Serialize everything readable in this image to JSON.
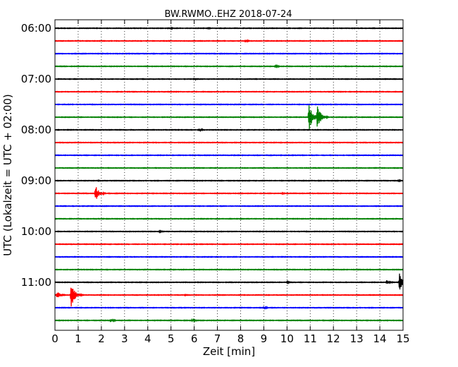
{
  "chart_data": {
    "type": "line",
    "title": "BW.RWMO..EHZ 2018-07-24",
    "xlabel": "Zeit  [min]",
    "ylabel": "UTC (Lokalzeit = UTC + 02:00)",
    "xlim": [
      0,
      15
    ],
    "x_ticks": [
      "0",
      "1",
      "2",
      "3",
      "4",
      "5",
      "6",
      "7",
      "8",
      "9",
      "10",
      "11",
      "12",
      "13",
      "14",
      "15"
    ],
    "grid": "vertical dotted",
    "trace_colors": [
      "#000000",
      "#ff0000",
      "#0000ff",
      "#008000"
    ],
    "hour_labels": [
      {
        "label": "06:00",
        "row": 0
      },
      {
        "label": "07:00",
        "row": 4
      },
      {
        "label": "08:00",
        "row": 8
      },
      {
        "label": "09:00",
        "row": 12
      },
      {
        "label": "10:00",
        "row": 16
      },
      {
        "label": "11:00",
        "row": 20
      }
    ],
    "rows": [
      {
        "start": "06:00",
        "events": [
          {
            "t": 5.0,
            "amp": 0.18
          },
          {
            "t": 6.6,
            "amp": 0.15
          }
        ]
      },
      {
        "start": "06:15",
        "events": [
          {
            "t": 8.2,
            "amp": 0.35
          }
        ]
      },
      {
        "start": "06:30",
        "events": []
      },
      {
        "start": "06:45",
        "events": [
          {
            "t": 9.5,
            "amp": 0.3
          },
          {
            "t": 12.5,
            "amp": 0.12
          }
        ]
      },
      {
        "start": "07:00",
        "events": [
          {
            "t": 6.0,
            "amp": 0.25
          },
          {
            "t": 8.0,
            "amp": 0.1
          }
        ]
      },
      {
        "start": "07:15",
        "events": []
      },
      {
        "start": "07:30",
        "events": []
      },
      {
        "start": "07:45",
        "events": [
          {
            "t": 10.95,
            "amp": 3.2
          },
          {
            "t": 11.3,
            "amp": 2.8
          }
        ]
      },
      {
        "start": "08:00",
        "events": [
          {
            "t": 6.2,
            "amp": 0.4
          }
        ]
      },
      {
        "start": "08:15",
        "events": []
      },
      {
        "start": "08:30",
        "events": []
      },
      {
        "start": "08:45",
        "events": []
      },
      {
        "start": "09:00",
        "events": [
          {
            "t": 1.85,
            "amp": 0.15
          },
          {
            "t": 7.0,
            "amp": 0.12
          },
          {
            "t": 14.8,
            "amp": 0.2
          }
        ]
      },
      {
        "start": "09:15",
        "events": [
          {
            "t": 1.75,
            "amp": 1.8
          },
          {
            "t": 9.8,
            "amp": 0.2
          }
        ]
      },
      {
        "start": "09:30",
        "events": []
      },
      {
        "start": "09:45",
        "events": [
          {
            "t": 8.0,
            "amp": 0.12
          }
        ]
      },
      {
        "start": "10:00",
        "events": [
          {
            "t": 4.5,
            "amp": 0.25
          },
          {
            "t": 2.0,
            "amp": 0.1
          }
        ]
      },
      {
        "start": "10:15",
        "events": [
          {
            "t": 4.3,
            "amp": 0.1
          }
        ]
      },
      {
        "start": "10:30",
        "events": []
      },
      {
        "start": "10:45",
        "events": []
      },
      {
        "start": "11:00",
        "events": [
          {
            "t": 10.0,
            "amp": 0.25
          },
          {
            "t": 14.3,
            "amp": 0.5
          },
          {
            "t": 14.85,
            "amp": 2.6
          }
        ]
      },
      {
        "start": "11:15",
        "events": [
          {
            "t": 0.1,
            "amp": 0.8
          },
          {
            "t": 0.7,
            "amp": 2.8
          },
          {
            "t": 5.6,
            "amp": 0.2
          }
        ]
      },
      {
        "start": "11:30",
        "events": [
          {
            "t": 9.0,
            "amp": 0.3
          }
        ]
      },
      {
        "start": "11:45",
        "events": [
          {
            "t": 2.4,
            "amp": 0.4
          },
          {
            "t": 5.9,
            "amp": 0.35
          }
        ]
      }
    ]
  }
}
